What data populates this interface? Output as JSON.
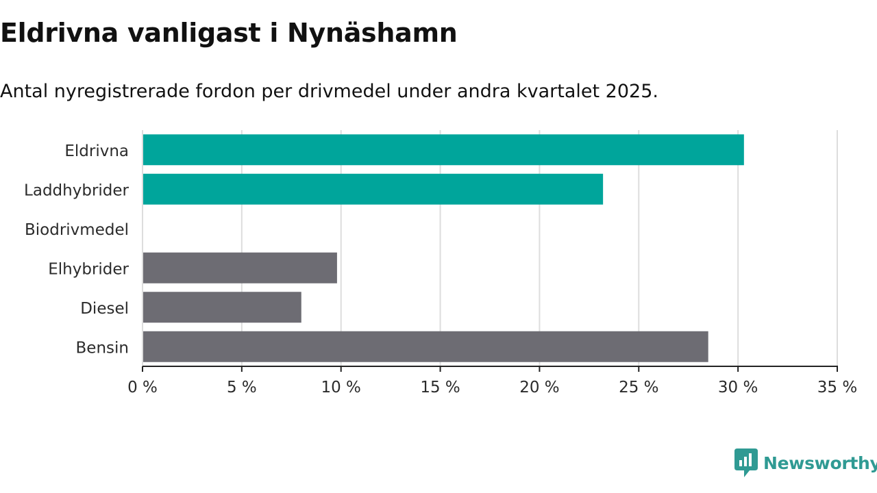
{
  "header": {
    "title": "Eldrivna vanligast i Nynäshamn",
    "subtitle": "Antal nyregistrerade fordon per drivmedel under andra kvartalet 2025."
  },
  "chart_data": {
    "type": "bar",
    "orientation": "horizontal",
    "categories": [
      "Eldrivna",
      "Laddhybrider",
      "Biodrivmedel",
      "Elhybrider",
      "Diesel",
      "Bensin"
    ],
    "values": [
      30.3,
      23.2,
      0,
      9.8,
      8.0,
      28.5
    ],
    "value_unit": "%",
    "bar_colors": [
      "#00a59b",
      "#00a59b",
      "#00a59b",
      "#6d6c73",
      "#6d6c73",
      "#6d6c73"
    ],
    "xlim": [
      0,
      35
    ],
    "x_ticks": [
      0,
      5,
      10,
      15,
      20,
      25,
      30,
      35
    ],
    "x_tick_labels": [
      "0 %",
      "5 %",
      "10 %",
      "15 %",
      "20 %",
      "25 %",
      "30 %",
      "35 %"
    ],
    "grid": true,
    "xlabel": "",
    "ylabel": ""
  },
  "brand": {
    "name": "Newsworthy",
    "color": "#2f9a93",
    "icon": "newsworthy-logo-icon"
  }
}
